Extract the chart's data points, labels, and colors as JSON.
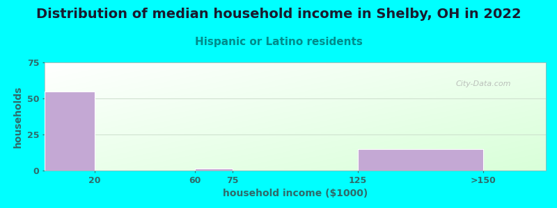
{
  "title": "Distribution of median household income in Shelby, OH in 2022",
  "subtitle": "Hispanic or Latino residents",
  "xlabel": "household income ($1000)",
  "ylabel": "households",
  "background_color": "#00FFFF",
  "bar_color": "#C4A8D4",
  "bar_edge_color": "#FFFFFF",
  "categories": [
    "20",
    "60",
    "75",
    "125",
    ">150"
  ],
  "values": [
    55,
    0,
    1.5,
    0,
    15
  ],
  "bar_lefts": [
    0,
    20,
    60,
    75,
    125
  ],
  "bar_widths": [
    20,
    40,
    15,
    50,
    50
  ],
  "ylim": [
    0,
    75
  ],
  "yticks": [
    0,
    25,
    50,
    75
  ],
  "xtick_positions": [
    20,
    60,
    75,
    125,
    175
  ],
  "xtick_labels": [
    "20",
    "60",
    "75",
    "125",
    ">150"
  ],
  "watermark": "City-Data.com",
  "title_fontsize": 14,
  "subtitle_fontsize": 11,
  "title_color": "#1a1a2e",
  "subtitle_color": "#008B8B",
  "axis_label_color": "#2F6B6B",
  "tick_color": "#2F6B6B",
  "grid_color": "#CCDDCC",
  "plot_xlim": [
    0,
    200
  ]
}
